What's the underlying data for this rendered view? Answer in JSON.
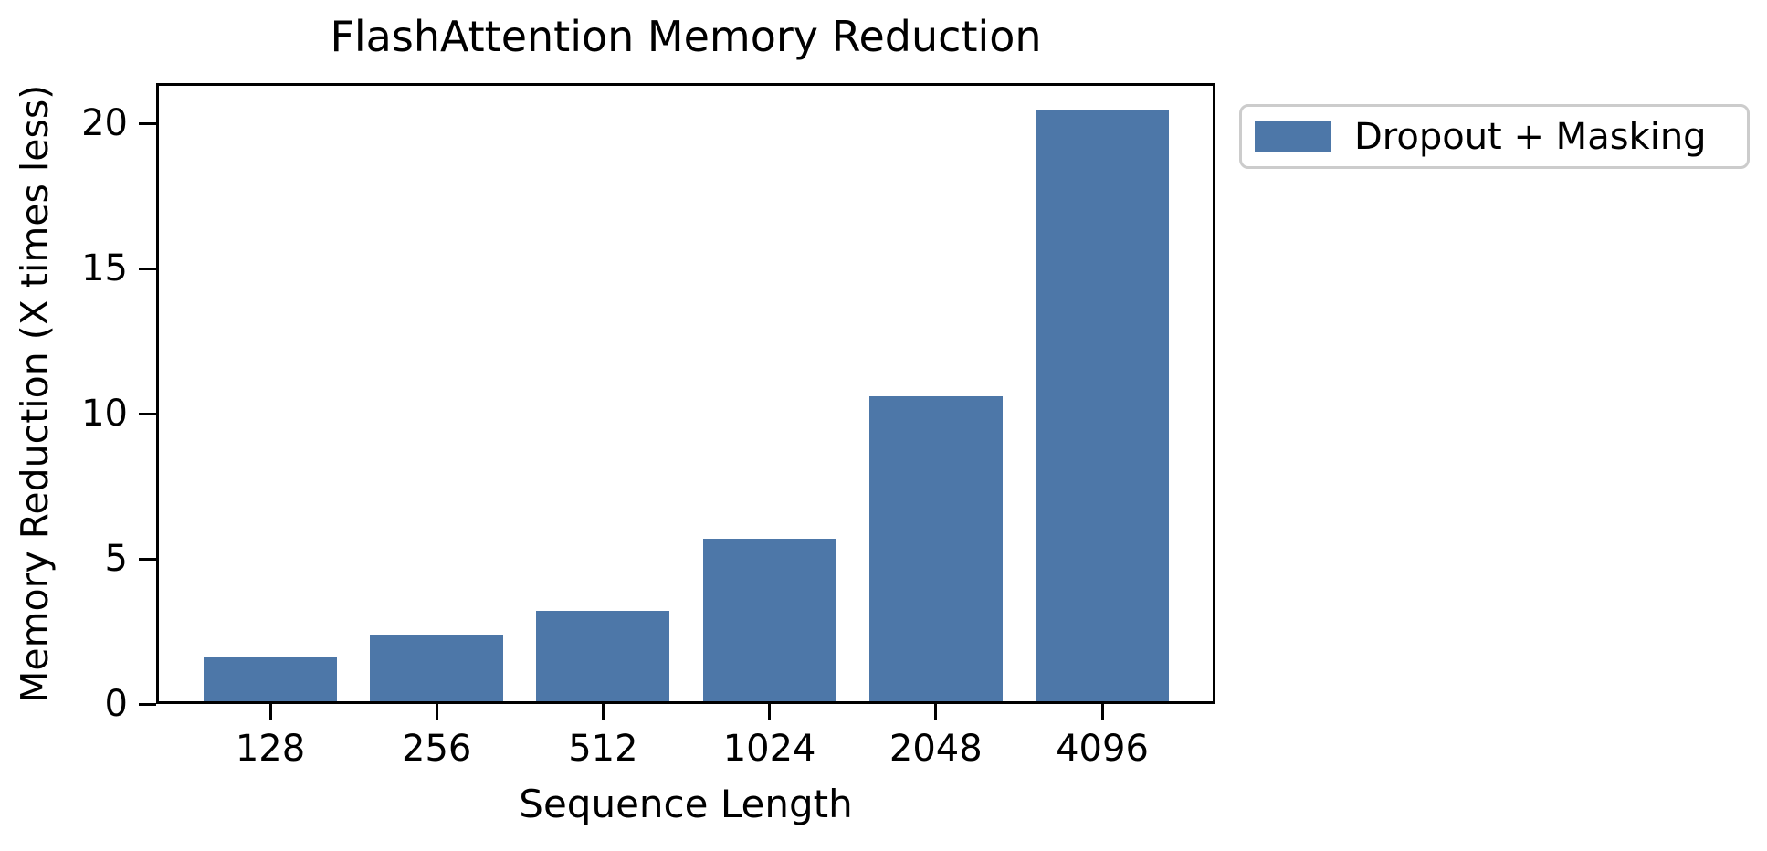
{
  "chart_data": {
    "type": "bar",
    "title": "FlashAttention Memory Reduction",
    "xlabel": "Sequence Length",
    "ylabel": "Memory Reduction (X times less)",
    "categories": [
      "128",
      "256",
      "512",
      "1024",
      "2048",
      "4096"
    ],
    "series": [
      {
        "name": "Dropout + Masking",
        "color": "#4d77a8",
        "values": [
          1.5,
          2.3,
          3.1,
          5.6,
          10.5,
          20.4
        ]
      }
    ],
    "yticks": [
      0,
      5,
      10,
      15,
      20
    ],
    "ylim": [
      0,
      21.4
    ],
    "grid": false,
    "legend": {
      "position": "outside-upper-right",
      "entries": [
        "Dropout + Masking"
      ]
    },
    "colors": {
      "axis": "#000000",
      "text": "#000000",
      "legend_border": "#cccccc",
      "background": "#ffffff"
    }
  }
}
